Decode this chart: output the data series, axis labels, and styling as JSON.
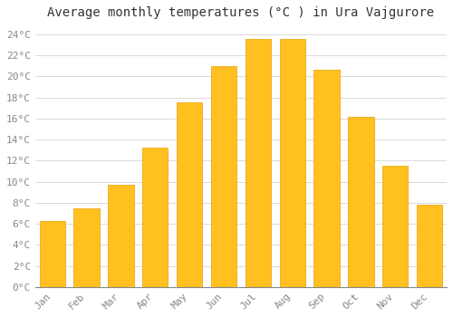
{
  "title": "Average monthly temperatures (°C ) in Ura Vajgurore",
  "months": [
    "Jan",
    "Feb",
    "Mar",
    "Apr",
    "May",
    "Jun",
    "Jul",
    "Aug",
    "Sep",
    "Oct",
    "Nov",
    "Dec"
  ],
  "values": [
    6.3,
    7.5,
    9.7,
    13.2,
    17.5,
    21.0,
    23.6,
    23.6,
    20.6,
    16.2,
    11.5,
    7.8
  ],
  "bar_color": "#FFC020",
  "bar_edge_color": "#E8A000",
  "background_color": "#FFFFFF",
  "plot_bg_color": "#FFFFFF",
  "grid_color": "#CCCCCC",
  "text_color": "#888888",
  "ylim": [
    0,
    25
  ],
  "yticks": [
    0,
    2,
    4,
    6,
    8,
    10,
    12,
    14,
    16,
    18,
    20,
    22,
    24
  ],
  "title_fontsize": 10,
  "tick_fontsize": 8,
  "bar_width": 0.75
}
